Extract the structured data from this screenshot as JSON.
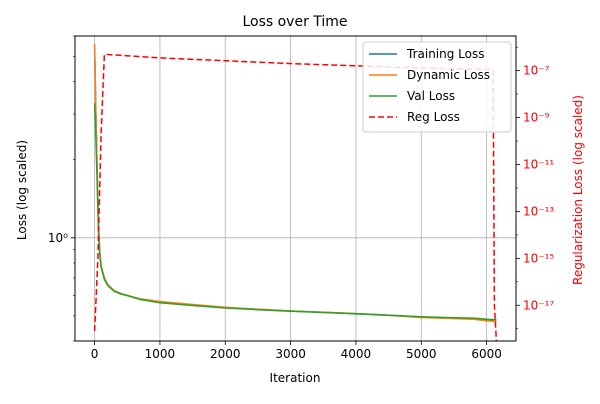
{
  "chart_data": {
    "type": "line",
    "title": "Loss over Time",
    "xlabel": "Iteration",
    "ylabel": "Loss (log scaled)",
    "ylabel_right": "Regularization Loss (log scaled)",
    "xlim": [
      -300,
      6450
    ],
    "ylim": [
      0.4,
      6.0
    ],
    "ylim_right": [
      3e-19,
      3e-06
    ],
    "yscale": "log",
    "yscale_right": "log",
    "grid": true,
    "legend_position": "top-right",
    "x_ticks": [
      0,
      1000,
      2000,
      3000,
      4000,
      5000,
      6000
    ],
    "x_tick_labels": [
      "0",
      "1000",
      "2000",
      "3000",
      "4000",
      "5000",
      "6000"
    ],
    "y_ticks": [
      1.0
    ],
    "y_tick_labels": [
      "10⁰"
    ],
    "y_right_ticks": [
      1e-17,
      1e-15,
      1e-13,
      1e-11,
      1e-09,
      1e-07
    ],
    "y_right_tick_labels": [
      "10⁻¹⁷",
      "10⁻¹⁵",
      "10⁻¹³",
      "10⁻¹¹",
      "10⁻⁹",
      "10⁻⁷"
    ],
    "series": [
      {
        "name": "Training Loss",
        "axis": "left",
        "color": "#1f77b4",
        "dash": "solid",
        "x": [
          0,
          20,
          40,
          60,
          80,
          100,
          150,
          200,
          300,
          400,
          500,
          700,
          1000,
          1500,
          2000,
          2500,
          3000,
          3500,
          4000,
          4500,
          5000,
          5500,
          5800,
          6000,
          6150
        ],
        "y": [
          5.5,
          3.0,
          1.8,
          1.1,
          0.88,
          0.78,
          0.7,
          0.66,
          0.625,
          0.61,
          0.6,
          0.58,
          0.565,
          0.55,
          0.538,
          0.53,
          0.522,
          0.516,
          0.51,
          0.503,
          0.495,
          0.49,
          0.488,
          0.482,
          0.48
        ]
      },
      {
        "name": "Dynamic Loss",
        "axis": "left",
        "color": "#ff7f0e",
        "dash": "solid",
        "x": [
          0,
          20,
          40,
          60,
          80,
          100,
          150,
          200,
          300,
          400,
          500,
          700,
          1000,
          1500,
          2000,
          2500,
          3000,
          3500,
          4000,
          4500,
          5000,
          5500,
          5800,
          6000,
          6150
        ],
        "y": [
          5.6,
          3.0,
          1.8,
          1.1,
          0.88,
          0.78,
          0.7,
          0.66,
          0.625,
          0.61,
          0.6,
          0.582,
          0.568,
          0.553,
          0.54,
          0.53,
          0.522,
          0.516,
          0.51,
          0.503,
          0.493,
          0.488,
          0.485,
          0.478,
          0.476
        ]
      },
      {
        "name": "Val Loss",
        "axis": "left",
        "color": "#2ca02c",
        "dash": "solid",
        "x": [
          0,
          20,
          40,
          60,
          80,
          100,
          150,
          200,
          300,
          400,
          500,
          700,
          1000,
          1500,
          2000,
          2500,
          3000,
          3500,
          4000,
          4500,
          5000,
          5500,
          5800,
          6000,
          6150
        ],
        "y": [
          3.3,
          2.4,
          1.6,
          1.05,
          0.86,
          0.77,
          0.69,
          0.655,
          0.622,
          0.607,
          0.598,
          0.578,
          0.562,
          0.548,
          0.536,
          0.528,
          0.521,
          0.515,
          0.509,
          0.503,
          0.496,
          0.492,
          0.49,
          0.485,
          0.483
        ]
      },
      {
        "name": "Reg Loss",
        "axis": "right",
        "color": "#ff0000",
        "dash": "dashed",
        "x": [
          0,
          50,
          100,
          150,
          1000,
          3000,
          5000,
          6100,
          6120,
          6150
        ],
        "y": [
          8e-19,
          1e-15,
          2e-10,
          5e-07,
          3.5e-07,
          2e-07,
          1.3e-07,
          1.1e-07,
          1e-17,
          3e-19
        ]
      }
    ]
  }
}
